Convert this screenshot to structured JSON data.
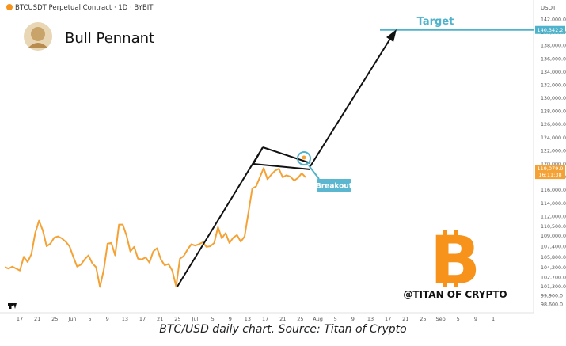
{
  "header": {
    "symbol_line": "BTCUSDT Perpetual Contract · 1D · BYBIT",
    "pattern_title": "Bull Pennant",
    "currency": "USDT"
  },
  "annotations": {
    "target_label": "Target",
    "target_price": "140,342.2",
    "breakout_label": "Breakout",
    "current_price": "119,079.9",
    "countdown": "16:11:38",
    "watermark": "@TITAN OF CRYPTO",
    "logo_glyph": "B"
  },
  "caption": "BTC/USD daily chart. Source: Titan of Crypto",
  "colors": {
    "price_line": "#f4a235",
    "target_line": "#4fb3cc",
    "breakout_badge": "#5bb7cf",
    "bitcoin_orange": "#f7931a",
    "price_tag": "#f4a235"
  },
  "icons": [
    "avatar-icon",
    "tradingview-logo-icon",
    "bitcoin-logo-icon",
    "breakout-circle-icon"
  ],
  "chart_data": {
    "type": "line",
    "x_ticks": [
      "17",
      "21",
      "25",
      "Jun",
      "5",
      "9",
      "13",
      "17",
      "21",
      "25",
      "Jul",
      "5",
      "9",
      "13",
      "17",
      "21",
      "25",
      "Aug",
      "5",
      "9",
      "13",
      "17",
      "21",
      "25",
      "Sep",
      "5",
      "9",
      "1"
    ],
    "y_ticks": [
      "142,000.0",
      "140,000.0",
      "138,000.0",
      "136,000.0",
      "134,000.0",
      "132,000.0",
      "130,000.0",
      "128,000.0",
      "126,000.0",
      "124,000.0",
      "122,000.0",
      "120,000.0",
      "118,000.0",
      "116,000.0",
      "114,000.0",
      "112,000.0",
      "110,500.0",
      "109,000.0",
      "107,400.0",
      "105,800.0",
      "104,200.0",
      "102,700.0",
      "101,300.0",
      "99,900.0",
      "98,600.0"
    ],
    "y_tick_values": [
      142000,
      140000,
      138000,
      136000,
      134000,
      132000,
      130000,
      128000,
      126000,
      124000,
      122000,
      120000,
      118000,
      116000,
      114000,
      112000,
      110500,
      109000,
      107400,
      105800,
      104200,
      102700,
      101300,
      99900,
      98600
    ],
    "price": [
      104200,
      104000,
      104300,
      104000,
      103700,
      105800,
      105000,
      106200,
      109400,
      111300,
      109800,
      107400,
      107800,
      108700,
      108900,
      108600,
      108100,
      107400,
      105800,
      104300,
      104600,
      105400,
      106000,
      104800,
      104200,
      101200,
      103800,
      107800,
      107900,
      106000,
      110700,
      110700,
      109000,
      106600,
      107300,
      105500,
      105400,
      105700,
      104900,
      106600,
      107100,
      105400,
      104500,
      104700,
      103700,
      101300,
      105500,
      105900,
      106900,
      107700,
      107500,
      107700,
      108000,
      107300,
      107400,
      107900,
      110300,
      108600,
      109400,
      107900,
      108700,
      109100,
      108100,
      108900,
      112500,
      116200,
      116500,
      117900,
      119300,
      117600,
      118300,
      118900,
      119200,
      117900,
      118200,
      118000,
      117400,
      117800,
      118500,
      117900
    ],
    "pennant": {
      "upper_line": [
        [
          121000
        ],
        [
          118500
        ]
      ],
      "lower_line": [
        [
          118700
        ],
        [
          117500
        ]
      ]
    },
    "target_price": 140342.2,
    "current_price": 119079.9
  }
}
